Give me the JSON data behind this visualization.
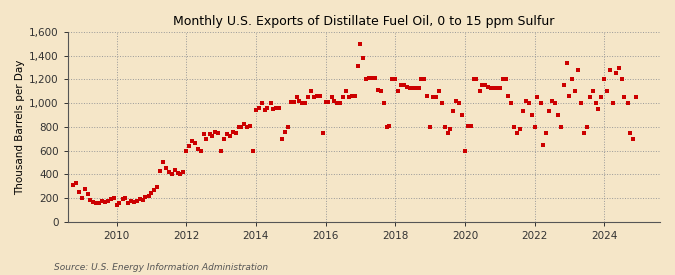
{
  "title": "Monthly U.S. Exports of Distillate Fuel Oil, 0 to 15 ppm Sulfur",
  "ylabel": "Thousand Barrels per Day",
  "source": "Source: U.S. Energy Information Administration",
  "background_color": "#f5e6c8",
  "plot_bg_color": "#f5e6c8",
  "dot_color": "#cc0000",
  "grid_color": "#999999",
  "ylim": [
    0,
    1600
  ],
  "yticks": [
    0,
    200,
    400,
    600,
    800,
    1000,
    1200,
    1400,
    1600
  ],
  "xmin": 2008.6,
  "xmax": 2025.6,
  "xticks": [
    2010,
    2012,
    2014,
    2016,
    2018,
    2020,
    2022,
    2024
  ],
  "data": [
    [
      2008.75,
      310
    ],
    [
      2008.83,
      330
    ],
    [
      2008.92,
      250
    ],
    [
      2009.0,
      200
    ],
    [
      2009.08,
      280
    ],
    [
      2009.17,
      230
    ],
    [
      2009.25,
      185
    ],
    [
      2009.33,
      170
    ],
    [
      2009.42,
      155
    ],
    [
      2009.5,
      160
    ],
    [
      2009.58,
      175
    ],
    [
      2009.67,
      165
    ],
    [
      2009.75,
      175
    ],
    [
      2009.83,
      190
    ],
    [
      2009.92,
      200
    ],
    [
      2010.0,
      145
    ],
    [
      2010.08,
      160
    ],
    [
      2010.17,
      190
    ],
    [
      2010.25,
      200
    ],
    [
      2010.33,
      160
    ],
    [
      2010.42,
      175
    ],
    [
      2010.5,
      165
    ],
    [
      2010.58,
      175
    ],
    [
      2010.67,
      190
    ],
    [
      2010.75,
      185
    ],
    [
      2010.83,
      210
    ],
    [
      2010.92,
      220
    ],
    [
      2011.0,
      240
    ],
    [
      2011.08,
      265
    ],
    [
      2011.17,
      290
    ],
    [
      2011.25,
      430
    ],
    [
      2011.33,
      500
    ],
    [
      2011.42,
      450
    ],
    [
      2011.5,
      415
    ],
    [
      2011.58,
      400
    ],
    [
      2011.67,
      440
    ],
    [
      2011.75,
      410
    ],
    [
      2011.83,
      400
    ],
    [
      2011.92,
      420
    ],
    [
      2012.0,
      600
    ],
    [
      2012.08,
      640
    ],
    [
      2012.17,
      680
    ],
    [
      2012.25,
      660
    ],
    [
      2012.33,
      610
    ],
    [
      2012.42,
      600
    ],
    [
      2012.5,
      740
    ],
    [
      2012.58,
      700
    ],
    [
      2012.67,
      740
    ],
    [
      2012.75,
      720
    ],
    [
      2012.83,
      760
    ],
    [
      2012.92,
      750
    ],
    [
      2013.0,
      600
    ],
    [
      2013.08,
      700
    ],
    [
      2013.17,
      740
    ],
    [
      2013.25,
      720
    ],
    [
      2013.33,
      760
    ],
    [
      2013.42,
      750
    ],
    [
      2013.5,
      800
    ],
    [
      2013.58,
      800
    ],
    [
      2013.67,
      820
    ],
    [
      2013.75,
      800
    ],
    [
      2013.83,
      810
    ],
    [
      2013.92,
      600
    ],
    [
      2014.0,
      940
    ],
    [
      2014.08,
      960
    ],
    [
      2014.17,
      1000
    ],
    [
      2014.25,
      940
    ],
    [
      2014.33,
      960
    ],
    [
      2014.42,
      1000
    ],
    [
      2014.5,
      950
    ],
    [
      2014.58,
      960
    ],
    [
      2014.67,
      960
    ],
    [
      2014.75,
      700
    ],
    [
      2014.83,
      760
    ],
    [
      2014.92,
      800
    ],
    [
      2015.0,
      1010
    ],
    [
      2015.08,
      1010
    ],
    [
      2015.17,
      1050
    ],
    [
      2015.25,
      1020
    ],
    [
      2015.33,
      1000
    ],
    [
      2015.42,
      1000
    ],
    [
      2015.5,
      1050
    ],
    [
      2015.58,
      1100
    ],
    [
      2015.67,
      1050
    ],
    [
      2015.75,
      1060
    ],
    [
      2015.83,
      1060
    ],
    [
      2015.92,
      750
    ],
    [
      2016.0,
      1010
    ],
    [
      2016.08,
      1010
    ],
    [
      2016.17,
      1050
    ],
    [
      2016.25,
      1020
    ],
    [
      2016.33,
      1000
    ],
    [
      2016.42,
      1000
    ],
    [
      2016.5,
      1050
    ],
    [
      2016.58,
      1100
    ],
    [
      2016.67,
      1050
    ],
    [
      2016.75,
      1060
    ],
    [
      2016.83,
      1060
    ],
    [
      2016.92,
      1310
    ],
    [
      2017.0,
      1500
    ],
    [
      2017.08,
      1380
    ],
    [
      2017.17,
      1200
    ],
    [
      2017.25,
      1210
    ],
    [
      2017.33,
      1210
    ],
    [
      2017.42,
      1210
    ],
    [
      2017.5,
      1110
    ],
    [
      2017.58,
      1100
    ],
    [
      2017.67,
      1000
    ],
    [
      2017.75,
      800
    ],
    [
      2017.83,
      810
    ],
    [
      2017.92,
      1200
    ],
    [
      2018.0,
      1200
    ],
    [
      2018.08,
      1100
    ],
    [
      2018.17,
      1150
    ],
    [
      2018.25,
      1150
    ],
    [
      2018.33,
      1140
    ],
    [
      2018.42,
      1130
    ],
    [
      2018.5,
      1130
    ],
    [
      2018.58,
      1130
    ],
    [
      2018.67,
      1130
    ],
    [
      2018.75,
      1200
    ],
    [
      2018.83,
      1200
    ],
    [
      2018.92,
      1060
    ],
    [
      2019.0,
      800
    ],
    [
      2019.08,
      1050
    ],
    [
      2019.17,
      1050
    ],
    [
      2019.25,
      1100
    ],
    [
      2019.33,
      1000
    ],
    [
      2019.42,
      800
    ],
    [
      2019.5,
      750
    ],
    [
      2019.58,
      780
    ],
    [
      2019.67,
      930
    ],
    [
      2019.75,
      1020
    ],
    [
      2019.83,
      1000
    ],
    [
      2019.92,
      900
    ],
    [
      2020.0,
      600
    ],
    [
      2020.08,
      810
    ],
    [
      2020.17,
      810
    ],
    [
      2020.25,
      1200
    ],
    [
      2020.33,
      1200
    ],
    [
      2020.42,
      1100
    ],
    [
      2020.5,
      1150
    ],
    [
      2020.58,
      1150
    ],
    [
      2020.67,
      1140
    ],
    [
      2020.75,
      1130
    ],
    [
      2020.83,
      1130
    ],
    [
      2020.92,
      1130
    ],
    [
      2021.0,
      1130
    ],
    [
      2021.08,
      1200
    ],
    [
      2021.17,
      1200
    ],
    [
      2021.25,
      1060
    ],
    [
      2021.33,
      1000
    ],
    [
      2021.42,
      800
    ],
    [
      2021.5,
      750
    ],
    [
      2021.58,
      780
    ],
    [
      2021.67,
      930
    ],
    [
      2021.75,
      1020
    ],
    [
      2021.83,
      1000
    ],
    [
      2021.92,
      900
    ],
    [
      2022.0,
      800
    ],
    [
      2022.08,
      1050
    ],
    [
      2022.17,
      1000
    ],
    [
      2022.25,
      650
    ],
    [
      2022.33,
      750
    ],
    [
      2022.42,
      930
    ],
    [
      2022.5,
      1020
    ],
    [
      2022.58,
      1000
    ],
    [
      2022.67,
      900
    ],
    [
      2022.75,
      800
    ],
    [
      2022.83,
      1150
    ],
    [
      2022.92,
      1340
    ],
    [
      2023.0,
      1060
    ],
    [
      2023.08,
      1200
    ],
    [
      2023.17,
      1100
    ],
    [
      2023.25,
      1280
    ],
    [
      2023.33,
      1000
    ],
    [
      2023.42,
      750
    ],
    [
      2023.5,
      800
    ],
    [
      2023.58,
      1050
    ],
    [
      2023.67,
      1100
    ],
    [
      2023.75,
      1000
    ],
    [
      2023.83,
      950
    ],
    [
      2023.92,
      1050
    ],
    [
      2024.0,
      1200
    ],
    [
      2024.08,
      1100
    ],
    [
      2024.17,
      1280
    ],
    [
      2024.25,
      1000
    ],
    [
      2024.33,
      1250
    ],
    [
      2024.42,
      1300
    ],
    [
      2024.5,
      1200
    ],
    [
      2024.58,
      1050
    ],
    [
      2024.67,
      1000
    ],
    [
      2024.75,
      750
    ],
    [
      2024.83,
      700
    ],
    [
      2024.92,
      1050
    ]
  ]
}
